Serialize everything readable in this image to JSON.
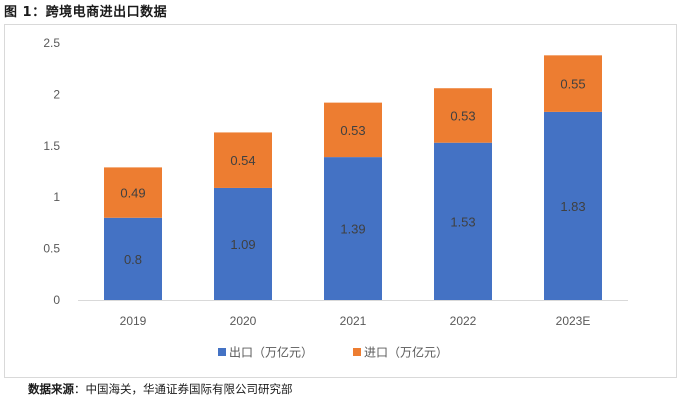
{
  "header": {
    "title": "图 1：跨境电商进出口数据"
  },
  "footer": {
    "source_label": "数据来源",
    "source_text": "：中国海关，华通证券国际有限公司研究部"
  },
  "chart_data": {
    "type": "bar",
    "stacked": true,
    "categories": [
      "2019",
      "2020",
      "2021",
      "2022",
      "2023E"
    ],
    "series": [
      {
        "name": "出口（万亿元）",
        "values": [
          0.8,
          1.09,
          1.39,
          1.53,
          1.83
        ],
        "color": "#4472c4"
      },
      {
        "name": "进口（万亿元）",
        "values": [
          0.49,
          0.54,
          0.53,
          0.53,
          0.55
        ],
        "color": "#ed7d31"
      }
    ],
    "ylim": [
      0,
      2.5
    ],
    "yticks": [
      0,
      0.5,
      1,
      1.5,
      2,
      2.5
    ],
    "ytick_labels": [
      "0",
      "0.5",
      "1",
      "1.5",
      "2",
      "2.5"
    ],
    "grid": false,
    "legend_position": "bottom",
    "data_labels": true,
    "title": "",
    "xlabel": "",
    "ylabel": ""
  }
}
